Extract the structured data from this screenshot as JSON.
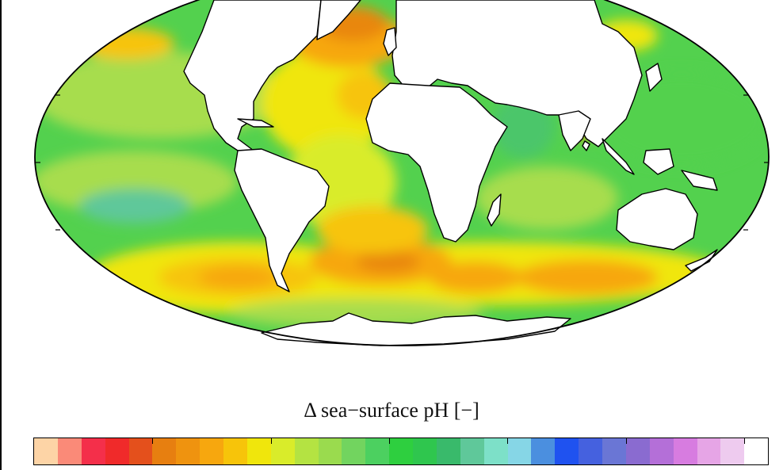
{
  "map": {
    "projection": "Mollweide",
    "field": "change in sea-surface pH"
  },
  "colorbar": {
    "label": "Δ sea−surface pH [−]",
    "colors": [
      "#fdd4a6",
      "#fa8a78",
      "#f42f4a",
      "#f02a2a",
      "#e4501c",
      "#e77f10",
      "#ef930f",
      "#f7a70e",
      "#f7c40a",
      "#f0e60c",
      "#d9ec2a",
      "#b4e342",
      "#9adb4e",
      "#72d45f",
      "#4cd060",
      "#2ecf3f",
      "#2fc64e",
      "#39ba6b",
      "#5fc89a",
      "#7de0c8",
      "#86d6e6",
      "#4b8fdf",
      "#1f52f0",
      "#4561df",
      "#6a76d5",
      "#8a6bd0",
      "#b46fd8",
      "#d77ce0",
      "#e6a5e6",
      "#eecbef",
      "#ffffff"
    ]
  },
  "palette": {
    "land": "#ffffff",
    "coast": "#000000",
    "ocean_green": "#53d14e",
    "ocean_lightgreen": "#a7dd4e",
    "ocean_yellow": "#f0e60c",
    "ocean_orange": "#f7a70e",
    "ocean_deeporange": "#e9870f",
    "ocean_teal": "#5fc89a"
  }
}
